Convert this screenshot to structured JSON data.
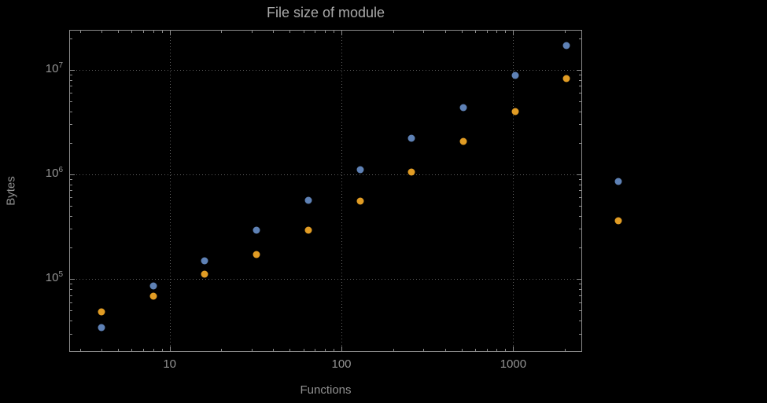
{
  "colors": {
    "background": "#000000",
    "frame": "#8c8c8c",
    "grid": "#606060",
    "text": "#939393",
    "series_blue": "#5e81b5",
    "series_orange": "#e19c24"
  },
  "chart_data": {
    "type": "scatter",
    "title": "File size of module",
    "xlabel": "Functions",
    "ylabel": "Bytes",
    "x_scale": "log",
    "y_scale": "log",
    "grid": "dotted",
    "legend": "none",
    "x": [
      4,
      8,
      16,
      32,
      64,
      128,
      256,
      512,
      1024,
      2048,
      4096
    ],
    "series": [
      {
        "name": "blue",
        "color": "#5e81b5",
        "values": [
          34000,
          85000,
          150000,
          290000,
          560000,
          1100000,
          2200000,
          4300000,
          8800000,
          17000000,
          850000
        ]
      },
      {
        "name": "orange",
        "color": "#e19c24",
        "values": [
          48000,
          68000,
          110000,
          170000,
          290000,
          550000,
          1050000,
          2050000,
          4000000,
          8200000,
          360000
        ]
      }
    ],
    "x_ticks": [
      10,
      100,
      1000
    ],
    "x_tick_labels": [
      "10",
      "100",
      "1000"
    ],
    "y_ticks": [
      100000,
      1000000,
      10000000
    ],
    "y_tick_exponents": [
      5,
      6,
      7
    ],
    "x_range": [
      2.6,
      2520
    ],
    "y_range": [
      20000,
      24000000
    ]
  }
}
